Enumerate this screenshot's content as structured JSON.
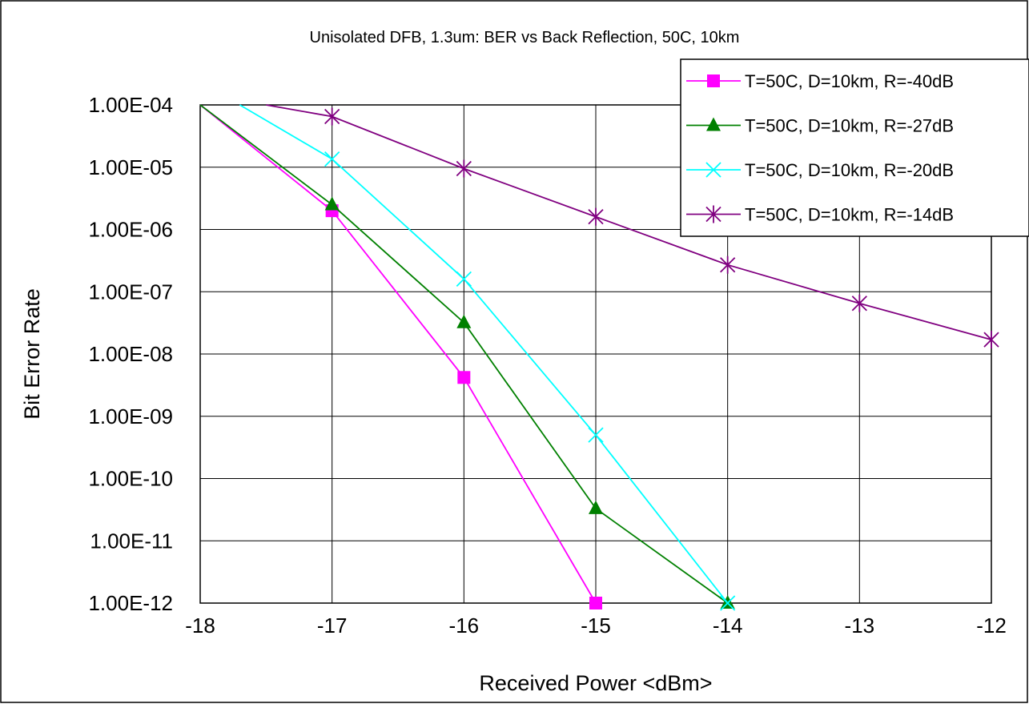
{
  "chart_data": {
    "type": "line",
    "title": "Unisolated DFB, 1.3um:  BER vs Back Reflection, 50C, 10km",
    "xlabel": "Received Power <dBm>",
    "ylabel": "Bit Error Rate",
    "xlim": [
      -18,
      -12
    ],
    "ylim": [
      1e-12,
      0.0001
    ],
    "yscale": "log",
    "x_ticks": [
      -18,
      -17,
      -16,
      -15,
      -14,
      -13,
      -12
    ],
    "x_tick_labels": [
      "-18",
      "-17",
      "-16",
      "-15",
      "-14",
      "-13",
      "-12"
    ],
    "y_ticks": [
      0.0001,
      1e-05,
      1e-06,
      1e-07,
      1e-08,
      1e-09,
      1e-10,
      1e-11,
      1e-12
    ],
    "y_tick_labels": [
      "1.00E-04",
      "1.00E-05",
      "1.00E-06",
      "1.00E-07",
      "1.00E-08",
      "1.00E-09",
      "1.00E-10",
      "1.00E-11",
      "1.00E-12"
    ],
    "grid": true,
    "legend_position": "top-right",
    "series": [
      {
        "name": "T=50C, D=10km, R=-40dB",
        "color": "#ff00ff",
        "marker": "square",
        "line": [
          [
            -18,
            0.0001
          ],
          [
            -17,
            2e-06
          ],
          [
            -16,
            4.2e-09
          ],
          [
            -15,
            1e-12
          ]
        ],
        "points": [
          [
            -17,
            2e-06
          ],
          [
            -16,
            4.2e-09
          ],
          [
            -15,
            1e-12
          ]
        ]
      },
      {
        "name": "T=50C, D=10km, R=-27dB",
        "color": "#008000",
        "marker": "triangle",
        "line": [
          [
            -18,
            0.0001
          ],
          [
            -17,
            2.5e-06
          ],
          [
            -16,
            3.2e-08
          ],
          [
            -15,
            3.3e-11
          ],
          [
            -14,
            1e-12
          ]
        ],
        "points": [
          [
            -17,
            2.5e-06
          ],
          [
            -16,
            3.2e-08
          ],
          [
            -15,
            3.3e-11
          ],
          [
            -14,
            1e-12
          ]
        ]
      },
      {
        "name": "T=50C, D=10km, R=-20dB",
        "color": "#00ffff",
        "marker": "x",
        "line": [
          [
            -17.7,
            0.0001
          ],
          [
            -17,
            1.35e-05
          ],
          [
            -16,
            1.6e-07
          ],
          [
            -15,
            5e-10
          ],
          [
            -14,
            1e-12
          ]
        ],
        "points": [
          [
            -17,
            1.35e-05
          ],
          [
            -16,
            1.6e-07
          ],
          [
            -15,
            5e-10
          ],
          [
            -14,
            1e-12
          ]
        ]
      },
      {
        "name": "T=50C, D=10km, R=-14dB",
        "color": "#800080",
        "marker": "star",
        "line": [
          [
            -17.5,
            0.0001
          ],
          [
            -17,
            6.5e-05
          ],
          [
            -16,
            9.5e-06
          ],
          [
            -15,
            1.6e-06
          ],
          [
            -14,
            2.7e-07
          ],
          [
            -13,
            6.5e-08
          ],
          [
            -12,
            1.7e-08
          ]
        ],
        "points": [
          [
            -17,
            6.5e-05
          ],
          [
            -16,
            9.5e-06
          ],
          [
            -15,
            1.6e-06
          ],
          [
            -14,
            2.7e-07
          ],
          [
            -13,
            6.5e-08
          ],
          [
            -12,
            1.7e-08
          ]
        ]
      }
    ]
  }
}
